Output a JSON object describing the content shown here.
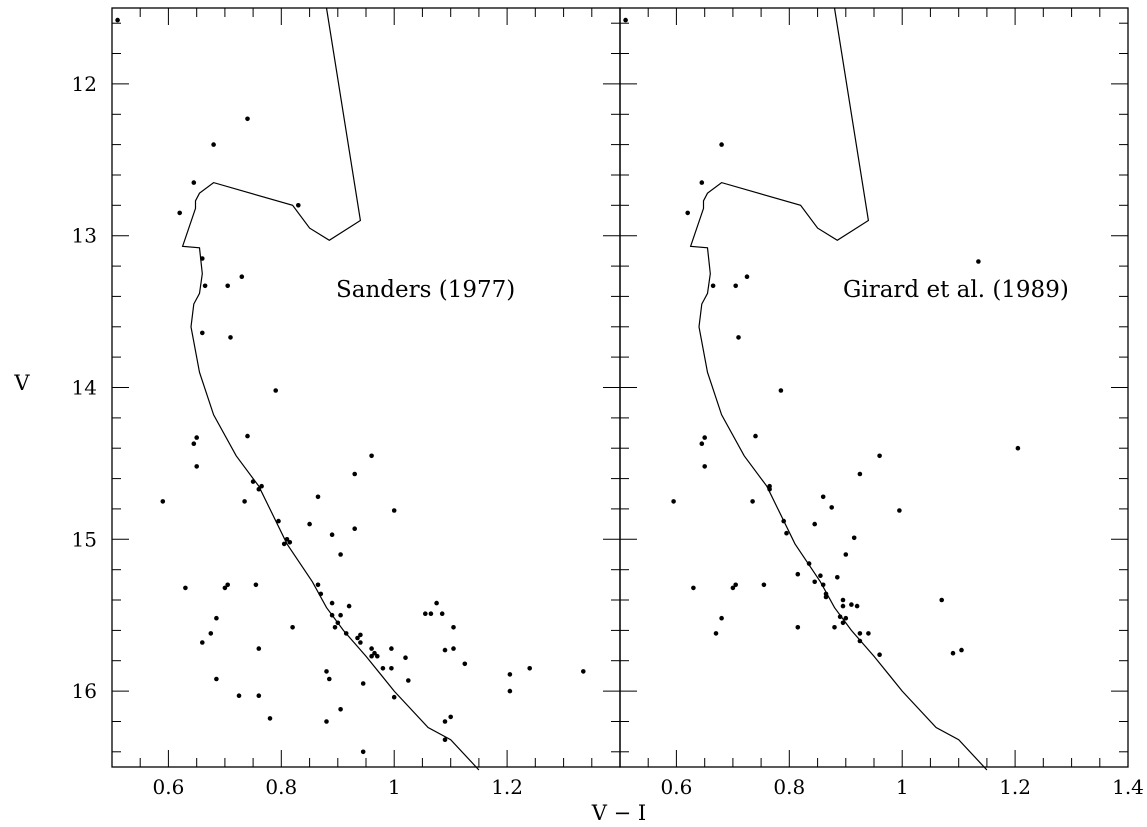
{
  "chart_data": {
    "type": "scatter",
    "xlabel": "V − I",
    "ylabel": "V",
    "xlim": [
      0.5,
      1.4
    ],
    "ylim": [
      16.5,
      11.5
    ],
    "y_inverted": true,
    "xticks_left": [
      0.6,
      0.8,
      1,
      1.2
    ],
    "xtick_labels_left": [
      "0.6",
      "0.8",
      "1",
      "1.2"
    ],
    "xticks_right": [
      0.6,
      0.8,
      1,
      1.2,
      1.4
    ],
    "xtick_labels_right": [
      "0.6",
      "0.8",
      "1",
      "1.2",
      "1.4"
    ],
    "yticks": [
      12,
      13,
      14,
      15,
      16
    ],
    "ytick_labels": [
      "12",
      "13",
      "14",
      "15",
      "16"
    ],
    "isochrone": [
      [
        0.88,
        11.5
      ],
      [
        0.94,
        12.9
      ],
      [
        0.885,
        13.03
      ],
      [
        0.85,
        12.95
      ],
      [
        0.82,
        12.8
      ],
      [
        0.68,
        12.65
      ],
      [
        0.655,
        12.72
      ],
      [
        0.648,
        12.77
      ],
      [
        0.648,
        12.82
      ],
      [
        0.625,
        13.07
      ],
      [
        0.655,
        13.08
      ],
      [
        0.66,
        13.25
      ],
      [
        0.655,
        13.38
      ],
      [
        0.645,
        13.45
      ],
      [
        0.64,
        13.6
      ],
      [
        0.655,
        13.9
      ],
      [
        0.68,
        14.18
      ],
      [
        0.72,
        14.45
      ],
      [
        0.76,
        14.65
      ],
      [
        0.81,
        15.03
      ],
      [
        0.855,
        15.28
      ],
      [
        0.88,
        15.45
      ],
      [
        0.91,
        15.6
      ],
      [
        0.95,
        15.77
      ],
      [
        1,
        16
      ],
      [
        1.06,
        16.24
      ],
      [
        1.1,
        16.32
      ],
      [
        1.15,
        16.52
      ]
    ],
    "panels": [
      {
        "label": "Sanders (1977)",
        "points": [
          [
            0.51,
            11.58
          ],
          [
            0.74,
            12.23
          ],
          [
            0.68,
            12.4
          ],
          [
            0.645,
            12.65
          ],
          [
            0.62,
            12.85
          ],
          [
            0.83,
            12.8
          ],
          [
            0.66,
            13.15
          ],
          [
            0.73,
            13.27
          ],
          [
            0.665,
            13.33
          ],
          [
            0.705,
            13.33
          ],
          [
            0.66,
            13.64
          ],
          [
            0.71,
            13.67
          ],
          [
            0.79,
            14.02
          ],
          [
            0.74,
            14.32
          ],
          [
            0.65,
            14.33
          ],
          [
            0.645,
            14.37
          ],
          [
            0.65,
            14.52
          ],
          [
            0.96,
            14.45
          ],
          [
            0.93,
            14.57
          ],
          [
            0.75,
            14.62
          ],
          [
            0.765,
            14.65
          ],
          [
            0.76,
            14.67
          ],
          [
            0.735,
            14.75
          ],
          [
            0.59,
            14.75
          ],
          [
            0.865,
            14.72
          ],
          [
            1.0,
            14.81
          ],
          [
            0.795,
            14.88
          ],
          [
            0.85,
            14.9
          ],
          [
            0.93,
            14.93
          ],
          [
            0.89,
            14.97
          ],
          [
            0.81,
            15.0
          ],
          [
            0.805,
            15.03
          ],
          [
            0.815,
            15.02
          ],
          [
            0.905,
            15.1
          ],
          [
            0.63,
            15.32
          ],
          [
            0.705,
            15.3
          ],
          [
            0.7,
            15.32
          ],
          [
            0.755,
            15.3
          ],
          [
            0.865,
            15.3
          ],
          [
            0.87,
            15.36
          ],
          [
            0.89,
            15.42
          ],
          [
            0.92,
            15.44
          ],
          [
            0.89,
            15.5
          ],
          [
            0.905,
            15.5
          ],
          [
            0.9,
            15.55
          ],
          [
            0.915,
            15.62
          ],
          [
            0.895,
            15.58
          ],
          [
            0.935,
            15.65
          ],
          [
            0.94,
            15.63
          ],
          [
            0.94,
            15.68
          ],
          [
            0.96,
            15.72
          ],
          [
            0.965,
            15.75
          ],
          [
            0.96,
            15.77
          ],
          [
            0.97,
            15.77
          ],
          [
            0.995,
            15.72
          ],
          [
            1.02,
            15.78
          ],
          [
            0.98,
            15.85
          ],
          [
            0.995,
            15.85
          ],
          [
            0.685,
            15.52
          ],
          [
            0.82,
            15.58
          ],
          [
            0.66,
            15.68
          ],
          [
            0.675,
            15.62
          ],
          [
            0.76,
            15.72
          ],
          [
            1.055,
            15.49
          ],
          [
            1.065,
            15.49
          ],
          [
            1.075,
            15.42
          ],
          [
            1.085,
            15.49
          ],
          [
            1.09,
            15.73
          ],
          [
            1.105,
            15.58
          ],
          [
            1.105,
            15.72
          ],
          [
            1.125,
            15.82
          ],
          [
            1.205,
            15.89
          ],
          [
            1.24,
            15.85
          ],
          [
            1.335,
            15.87
          ],
          [
            0.88,
            15.87
          ],
          [
            0.885,
            15.92
          ],
          [
            0.685,
            15.92
          ],
          [
            0.945,
            15.95
          ],
          [
            1.0,
            16.04
          ],
          [
            1.025,
            15.93
          ],
          [
            0.725,
            16.03
          ],
          [
            0.76,
            16.03
          ],
          [
            0.78,
            16.18
          ],
          [
            0.88,
            16.2
          ],
          [
            0.905,
            16.12
          ],
          [
            1.09,
            16.2
          ],
          [
            1.1,
            16.17
          ],
          [
            1.205,
            16.0
          ],
          [
            1.09,
            16.32
          ],
          [
            0.945,
            16.4
          ]
        ]
      },
      {
        "label": "Girard et al. (1989)",
        "points": [
          [
            0.51,
            11.58
          ],
          [
            0.68,
            12.4
          ],
          [
            0.645,
            12.65
          ],
          [
            0.62,
            12.85
          ],
          [
            1.135,
            13.17
          ],
          [
            0.725,
            13.27
          ],
          [
            0.665,
            13.33
          ],
          [
            0.705,
            13.33
          ],
          [
            0.71,
            13.67
          ],
          [
            0.785,
            14.02
          ],
          [
            0.74,
            14.32
          ],
          [
            0.65,
            14.33
          ],
          [
            0.645,
            14.37
          ],
          [
            0.65,
            14.52
          ],
          [
            0.96,
            14.45
          ],
          [
            1.205,
            14.4
          ],
          [
            0.925,
            14.57
          ],
          [
            0.765,
            14.65
          ],
          [
            0.765,
            14.67
          ],
          [
            0.735,
            14.75
          ],
          [
            0.595,
            14.75
          ],
          [
            0.86,
            14.72
          ],
          [
            0.995,
            14.81
          ],
          [
            0.875,
            14.79
          ],
          [
            0.79,
            14.88
          ],
          [
            0.795,
            14.96
          ],
          [
            0.845,
            14.9
          ],
          [
            0.915,
            14.99
          ],
          [
            0.9,
            15.1
          ],
          [
            0.815,
            15.23
          ],
          [
            0.835,
            15.16
          ],
          [
            0.845,
            15.28
          ],
          [
            0.86,
            15.3
          ],
          [
            0.855,
            15.24
          ],
          [
            0.885,
            15.25
          ],
          [
            0.63,
            15.32
          ],
          [
            0.705,
            15.3
          ],
          [
            0.7,
            15.32
          ],
          [
            0.755,
            15.3
          ],
          [
            0.865,
            15.36
          ],
          [
            0.865,
            15.38
          ],
          [
            0.895,
            15.4
          ],
          [
            0.895,
            15.44
          ],
          [
            0.91,
            15.43
          ],
          [
            0.92,
            15.44
          ],
          [
            0.89,
            15.51
          ],
          [
            0.9,
            15.52
          ],
          [
            0.895,
            15.55
          ],
          [
            0.88,
            15.58
          ],
          [
            0.925,
            15.62
          ],
          [
            0.94,
            15.62
          ],
          [
            0.925,
            15.67
          ],
          [
            0.96,
            15.76
          ],
          [
            0.68,
            15.52
          ],
          [
            0.67,
            15.62
          ],
          [
            0.815,
            15.58
          ],
          [
            1.07,
            15.4
          ],
          [
            1.09,
            15.75
          ],
          [
            1.105,
            15.73
          ]
        ]
      }
    ]
  }
}
